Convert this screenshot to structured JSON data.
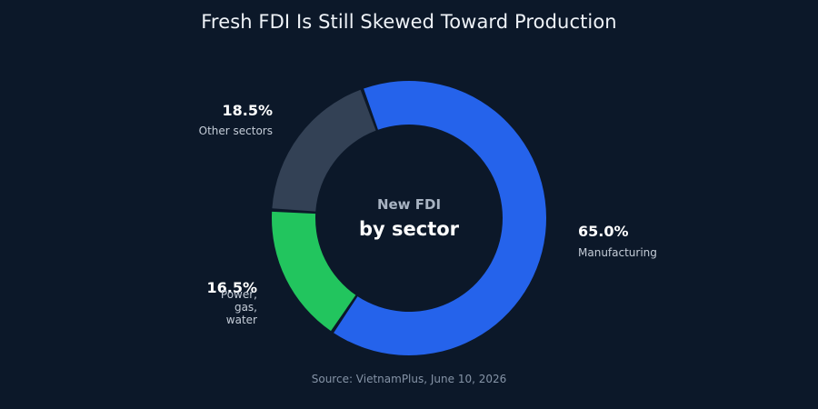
{
  "chart_data": {
    "type": "pie",
    "title": "Fresh FDI Is Still Skewed Toward Production",
    "center_label_top": "New FDI",
    "center_label_bottom": "by sector",
    "source": "Source: VietnamPlus, June 10, 2026",
    "categories": [
      "Manufacturing",
      "Power, gas, water",
      "Other sectors"
    ],
    "values": [
      65.0,
      16.5,
      18.5
    ],
    "value_labels": [
      "65.0%",
      "16.5%",
      "18.5%"
    ],
    "colors": [
      "#2563eb",
      "#22c55e",
      "#334155"
    ],
    "legend": "none"
  },
  "theme": {
    "background": "#0c1829",
    "title_color": "#eef2f7",
    "center_top_color": "#a8b3c2",
    "center_bottom_color": "#ffffff",
    "category_label_color": "#c4ccd7",
    "value_label_color": "#ffffff"
  }
}
